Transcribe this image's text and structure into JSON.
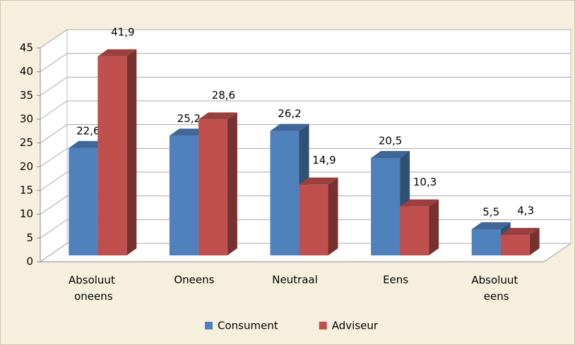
{
  "chart_data": {
    "type": "bar3d",
    "categories": [
      "Absoluut oneens",
      "Oneens",
      "Neutraal",
      "Eens",
      "Absoluut eens"
    ],
    "series": [
      {
        "name": "Consument",
        "color": "#4f81bd",
        "values": [
          22.6,
          25.2,
          26.2,
          20.5,
          5.5
        ],
        "value_labels": [
          "22,6",
          "25,2",
          "26,2",
          "20,5",
          "5,5"
        ]
      },
      {
        "name": "Adviseur",
        "color": "#c0504d",
        "values": [
          41.9,
          28.6,
          14.9,
          10.3,
          4.3
        ],
        "value_labels": [
          "41,9",
          "28,6",
          "14,9",
          "10,3",
          "4,3"
        ]
      }
    ],
    "ylim": [
      0,
      45
    ],
    "yticks": [
      0,
      5,
      10,
      15,
      20,
      25,
      30,
      35,
      40,
      45
    ],
    "grid": true,
    "legend": "bottom"
  }
}
